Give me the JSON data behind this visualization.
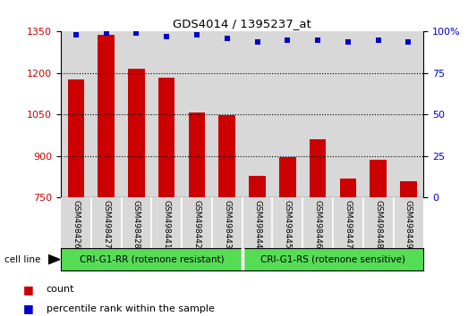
{
  "title": "GDS4014 / 1395237_at",
  "categories": [
    "GSM498426",
    "GSM498427",
    "GSM498428",
    "GSM498441",
    "GSM498442",
    "GSM498443",
    "GSM498444",
    "GSM498445",
    "GSM498446",
    "GSM498447",
    "GSM498448",
    "GSM498449"
  ],
  "bar_values": [
    1178,
    1338,
    1215,
    1184,
    1057,
    1047,
    829,
    897,
    960,
    820,
    885,
    810
  ],
  "scatter_values": [
    98,
    99,
    99,
    97,
    98,
    96,
    94,
    95,
    95,
    94,
    95,
    94
  ],
  "bar_color": "#cc0000",
  "scatter_color": "#0000cc",
  "ylim_left": [
    750,
    1350
  ],
  "ylim_right": [
    0,
    100
  ],
  "yticks_left": [
    750,
    900,
    1050,
    1200,
    1350
  ],
  "yticks_right": [
    0,
    25,
    50,
    75,
    100
  ],
  "ytick_labels_right": [
    "0",
    "25",
    "50",
    "75",
    "100%"
  ],
  "group1_label": "CRI-G1-RR (rotenone resistant)",
  "group2_label": "CRI-G1-RS (rotenone sensitive)",
  "group1_count": 6,
  "group2_count": 6,
  "cell_line_label": "cell line",
  "legend_count_label": "count",
  "legend_pct_label": "percentile rank within the sample",
  "group_color": "#55dd55",
  "col_bg_color": "#d8d8d8",
  "plot_bg_color": "#ffffff"
}
